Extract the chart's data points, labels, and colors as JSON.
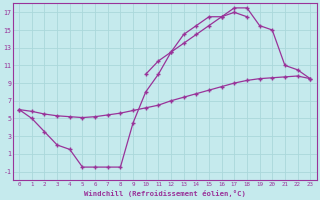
{
  "xlabel": "Windchill (Refroidissement éolien,°C)",
  "background_color": "#c5eaed",
  "grid_color": "#aad8db",
  "line_color": "#993399",
  "xlim": [
    -0.5,
    23.5
  ],
  "ylim": [
    -2.0,
    18.0
  ],
  "xticks": [
    0,
    1,
    2,
    3,
    4,
    5,
    6,
    7,
    8,
    9,
    10,
    11,
    12,
    13,
    14,
    15,
    16,
    17,
    18,
    19,
    20,
    21,
    22,
    23
  ],
  "yticks": [
    -1,
    1,
    3,
    5,
    7,
    9,
    11,
    13,
    15,
    17
  ],
  "line1_x": [
    0,
    1,
    2,
    3,
    4,
    5,
    6,
    7,
    8,
    9,
    10,
    11,
    12,
    13,
    14,
    15,
    16,
    17,
    18
  ],
  "line1_y": [
    6,
    5,
    3.5,
    2,
    1.5,
    -0.5,
    -0.5,
    -0.5,
    -0.5,
    4.5,
    8,
    10,
    12.5,
    14.5,
    15.5,
    16.5,
    16.5,
    17,
    16.5
  ],
  "line2_x": [
    0,
    1,
    2,
    3,
    4,
    5,
    6,
    7,
    8,
    9,
    10,
    11,
    12,
    13,
    14,
    15,
    16,
    17,
    18,
    19,
    20,
    21,
    22,
    23
  ],
  "line2_y": [
    6,
    5.8,
    5.5,
    5.3,
    5.2,
    5.1,
    5.2,
    5.4,
    5.6,
    5.9,
    6.2,
    6.5,
    7.0,
    7.4,
    7.8,
    8.2,
    8.6,
    9.0,
    9.3,
    9.5,
    9.6,
    9.7,
    9.8,
    9.5
  ],
  "line3_x": [
    10,
    11,
    12,
    13,
    14,
    15,
    16,
    17,
    18,
    19,
    20,
    21,
    22,
    23
  ],
  "line3_y": [
    10,
    11.5,
    12.5,
    13.5,
    14.5,
    15.5,
    16.5,
    17.5,
    17.5,
    15.5,
    15,
    11,
    10.5,
    9.5
  ]
}
